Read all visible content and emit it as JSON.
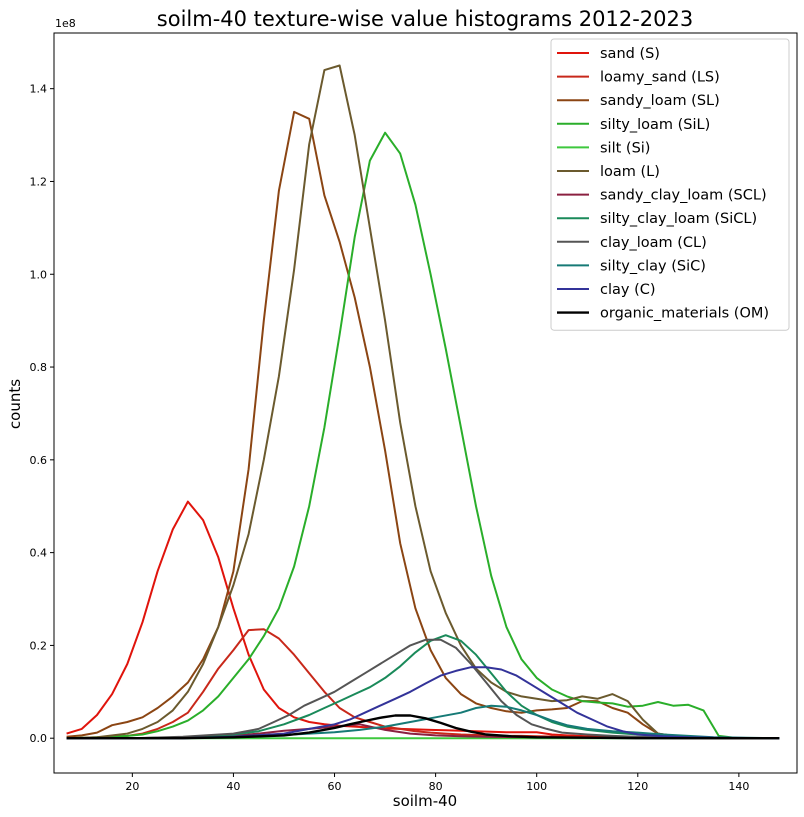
{
  "chart_data": {
    "type": "line",
    "title": "soilm-40 texture-wise value histograms 2012-2023",
    "xlabel": "soilm-40",
    "ylabel": "counts",
    "y_offset_label": "1e8",
    "xlim": [
      4.5,
      151.5
    ],
    "ylim": [
      -0.075,
      1.52
    ],
    "xticks": [
      20,
      40,
      60,
      80,
      100,
      120,
      140
    ],
    "yticks": [
      0.0,
      0.2,
      0.4,
      0.6,
      0.8,
      1.0,
      1.2,
      1.4
    ],
    "ytick_labels": [
      "0.0",
      "0.2",
      "0.4",
      "0.6",
      "0.8",
      "1.0",
      "1.2",
      "1.4"
    ],
    "legend_position": "top-right",
    "grid": false,
    "series": [
      {
        "name": "sand (S)",
        "color": "#e0140c",
        "x": [
          7,
          10,
          13,
          16,
          19,
          22,
          25,
          28,
          31,
          34,
          37,
          40,
          43,
          46,
          49,
          52,
          55,
          58,
          61,
          64,
          67,
          70,
          73,
          76,
          79,
          82,
          85,
          88,
          91,
          94,
          97,
          100,
          103,
          106,
          110,
          115,
          120,
          125,
          130,
          135,
          140,
          148
        ],
        "y": [
          0.01,
          0.02,
          0.05,
          0.095,
          0.16,
          0.25,
          0.36,
          0.45,
          0.51,
          0.47,
          0.39,
          0.28,
          0.18,
          0.105,
          0.065,
          0.045,
          0.035,
          0.03,
          0.027,
          0.025,
          0.023,
          0.021,
          0.02,
          0.019,
          0.018,
          0.017,
          0.016,
          0.015,
          0.014,
          0.013,
          0.013,
          0.013,
          0.008,
          0.006,
          0.004,
          0.003,
          0.002,
          0.002,
          0.001,
          0.001,
          0.0,
          0.0
        ]
      },
      {
        "name": "loamy_sand (LS)",
        "color": "#c8281a",
        "x": [
          7,
          13,
          19,
          22,
          25,
          28,
          31,
          34,
          37,
          40,
          43,
          46,
          49,
          52,
          55,
          58,
          61,
          64,
          67,
          70,
          73,
          76,
          79,
          82,
          85,
          88,
          91,
          94,
          97,
          100,
          105,
          110,
          115,
          120,
          125,
          130,
          135,
          140,
          148
        ],
        "y": [
          0.0,
          0.0,
          0.005,
          0.01,
          0.02,
          0.035,
          0.055,
          0.1,
          0.15,
          0.19,
          0.233,
          0.235,
          0.215,
          0.18,
          0.14,
          0.1,
          0.065,
          0.045,
          0.035,
          0.025,
          0.02,
          0.015,
          0.012,
          0.01,
          0.008,
          0.007,
          0.006,
          0.005,
          0.005,
          0.004,
          0.003,
          0.002,
          0.002,
          0.001,
          0.001,
          0.001,
          0.0,
          0.0,
          0.0
        ]
      },
      {
        "name": "sandy_loam (SL)",
        "color": "#8b4513",
        "x": [
          7,
          10,
          13,
          16,
          19,
          22,
          25,
          28,
          31,
          34,
          37,
          40,
          43,
          46,
          49,
          52,
          55,
          58,
          61,
          64,
          67,
          70,
          73,
          76,
          79,
          82,
          85,
          88,
          91,
          94,
          97,
          100,
          103,
          106,
          109,
          112,
          115,
          118,
          121,
          124,
          127,
          130,
          135,
          140,
          148
        ],
        "y": [
          0.003,
          0.006,
          0.012,
          0.028,
          0.035,
          0.045,
          0.065,
          0.09,
          0.12,
          0.17,
          0.24,
          0.36,
          0.58,
          0.9,
          1.18,
          1.35,
          1.335,
          1.17,
          1.07,
          0.95,
          0.8,
          0.62,
          0.42,
          0.28,
          0.19,
          0.13,
          0.095,
          0.075,
          0.065,
          0.058,
          0.055,
          0.06,
          0.062,
          0.065,
          0.08,
          0.08,
          0.065,
          0.055,
          0.03,
          0.01,
          0.005,
          0.002,
          0.0,
          0.0,
          0.0
        ]
      },
      {
        "name": "silty_loam (SiL)",
        "color": "#2aae2a",
        "x": [
          7,
          13,
          19,
          22,
          25,
          28,
          31,
          34,
          37,
          40,
          43,
          46,
          49,
          52,
          55,
          58,
          61,
          64,
          67,
          70,
          73,
          76,
          79,
          82,
          85,
          88,
          91,
          94,
          97,
          100,
          103,
          106,
          109,
          112,
          115,
          118,
          121,
          124,
          127,
          130,
          133,
          136,
          140,
          148
        ],
        "y": [
          0.0,
          0.002,
          0.005,
          0.008,
          0.015,
          0.025,
          0.038,
          0.06,
          0.09,
          0.13,
          0.17,
          0.22,
          0.28,
          0.37,
          0.5,
          0.67,
          0.87,
          1.08,
          1.245,
          1.305,
          1.26,
          1.15,
          1.0,
          0.84,
          0.67,
          0.5,
          0.35,
          0.24,
          0.17,
          0.13,
          0.105,
          0.09,
          0.08,
          0.077,
          0.075,
          0.068,
          0.07,
          0.078,
          0.07,
          0.072,
          0.06,
          0.005,
          0.0,
          0.0
        ]
      },
      {
        "name": "silt (Si)",
        "color": "#3ec83e",
        "x": [
          7,
          20,
          40,
          60,
          80,
          100,
          120,
          148
        ],
        "y": [
          0.0,
          0.0,
          0.0,
          0.0,
          0.0,
          0.0,
          0.0,
          0.0
        ]
      },
      {
        "name": "loam (L)",
        "color": "#6b5a2e",
        "x": [
          7,
          13,
          19,
          22,
          25,
          28,
          31,
          34,
          37,
          40,
          43,
          46,
          49,
          52,
          55,
          58,
          61,
          64,
          67,
          70,
          73,
          76,
          79,
          82,
          85,
          88,
          91,
          94,
          97,
          100,
          103,
          106,
          109,
          112,
          115,
          118,
          121,
          124,
          127,
          130,
          135,
          140,
          148
        ],
        "y": [
          0.0,
          0.002,
          0.01,
          0.02,
          0.035,
          0.06,
          0.1,
          0.16,
          0.24,
          0.33,
          0.44,
          0.6,
          0.78,
          1.01,
          1.28,
          1.44,
          1.45,
          1.3,
          1.1,
          0.9,
          0.68,
          0.5,
          0.36,
          0.27,
          0.2,
          0.15,
          0.12,
          0.1,
          0.09,
          0.085,
          0.08,
          0.082,
          0.09,
          0.085,
          0.095,
          0.08,
          0.04,
          0.01,
          0.005,
          0.002,
          0.0,
          0.0,
          0.0
        ]
      },
      {
        "name": "sandy_clay_loam (SCL)",
        "color": "#8b2040",
        "x": [
          7,
          20,
          30,
          40,
          45,
          50,
          55,
          60,
          65,
          70,
          75,
          80,
          85,
          90,
          100,
          110,
          120,
          130,
          148
        ],
        "y": [
          0.0,
          0.0,
          0.002,
          0.005,
          0.01,
          0.016,
          0.02,
          0.025,
          0.03,
          0.018,
          0.01,
          0.006,
          0.004,
          0.003,
          0.002,
          0.001,
          0.001,
          0.0,
          0.0
        ]
      },
      {
        "name": "silty_clay_loam (SiCL)",
        "color": "#1a8a5a",
        "x": [
          7,
          20,
          30,
          40,
          45,
          50,
          55,
          58,
          61,
          64,
          67,
          70,
          73,
          76,
          79,
          82,
          85,
          88,
          91,
          94,
          97,
          100,
          103,
          106,
          110,
          115,
          120,
          125,
          130,
          135,
          148
        ],
        "y": [
          0.0,
          0.0,
          0.002,
          0.008,
          0.015,
          0.03,
          0.05,
          0.065,
          0.08,
          0.095,
          0.11,
          0.13,
          0.155,
          0.185,
          0.21,
          0.222,
          0.21,
          0.18,
          0.14,
          0.1,
          0.07,
          0.05,
          0.035,
          0.025,
          0.018,
          0.012,
          0.008,
          0.005,
          0.003,
          0.001,
          0.0
        ]
      },
      {
        "name": "clay_loam (CL)",
        "color": "#555555",
        "x": [
          7,
          20,
          30,
          40,
          45,
          48,
          51,
          54,
          57,
          60,
          63,
          66,
          69,
          72,
          75,
          78,
          81,
          84,
          87,
          90,
          93,
          96,
          99,
          102,
          105,
          110,
          115,
          120,
          125,
          130,
          135,
          148
        ],
        "y": [
          0.0,
          0.0,
          0.003,
          0.01,
          0.02,
          0.035,
          0.05,
          0.07,
          0.085,
          0.1,
          0.12,
          0.14,
          0.16,
          0.18,
          0.2,
          0.212,
          0.212,
          0.195,
          0.16,
          0.12,
          0.08,
          0.05,
          0.03,
          0.02,
          0.012,
          0.008,
          0.005,
          0.003,
          0.002,
          0.001,
          0.0,
          0.0
        ]
      },
      {
        "name": "silty_clay (SiC)",
        "color": "#167a76",
        "x": [
          7,
          30,
          40,
          50,
          55,
          60,
          65,
          70,
          75,
          80,
          85,
          88,
          91,
          94,
          97,
          100,
          103,
          106,
          110,
          115,
          120,
          125,
          130,
          135,
          148
        ],
        "y": [
          0.0,
          0.0,
          0.003,
          0.007,
          0.01,
          0.013,
          0.018,
          0.025,
          0.035,
          0.045,
          0.055,
          0.065,
          0.07,
          0.068,
          0.06,
          0.05,
          0.038,
          0.028,
          0.02,
          0.015,
          0.012,
          0.008,
          0.005,
          0.002,
          0.0
        ]
      },
      {
        "name": "clay (C)",
        "color": "#333399",
        "x": [
          7,
          30,
          40,
          50,
          55,
          60,
          63,
          66,
          69,
          72,
          75,
          78,
          81,
          84,
          87,
          90,
          93,
          96,
          99,
          102,
          105,
          108,
          111,
          114,
          117,
          120,
          125,
          130,
          135,
          148
        ],
        "y": [
          0.0,
          0.0,
          0.003,
          0.01,
          0.02,
          0.03,
          0.04,
          0.055,
          0.07,
          0.085,
          0.1,
          0.118,
          0.135,
          0.145,
          0.153,
          0.153,
          0.148,
          0.135,
          0.115,
          0.095,
          0.075,
          0.055,
          0.04,
          0.025,
          0.015,
          0.008,
          0.004,
          0.002,
          0.001,
          0.0
        ]
      },
      {
        "name": "organic_materials (OM)",
        "color": "#000000",
        "x": [
          7,
          20,
          30,
          40,
          50,
          55,
          60,
          63,
          66,
          69,
          72,
          75,
          78,
          81,
          84,
          87,
          90,
          95,
          100,
          110,
          120,
          130,
          148
        ],
        "y": [
          0.0,
          0.0,
          0.0,
          0.002,
          0.006,
          0.012,
          0.022,
          0.03,
          0.037,
          0.044,
          0.049,
          0.049,
          0.043,
          0.033,
          0.022,
          0.014,
          0.008,
          0.004,
          0.002,
          0.001,
          0.0,
          0.0,
          0.0
        ]
      }
    ]
  }
}
